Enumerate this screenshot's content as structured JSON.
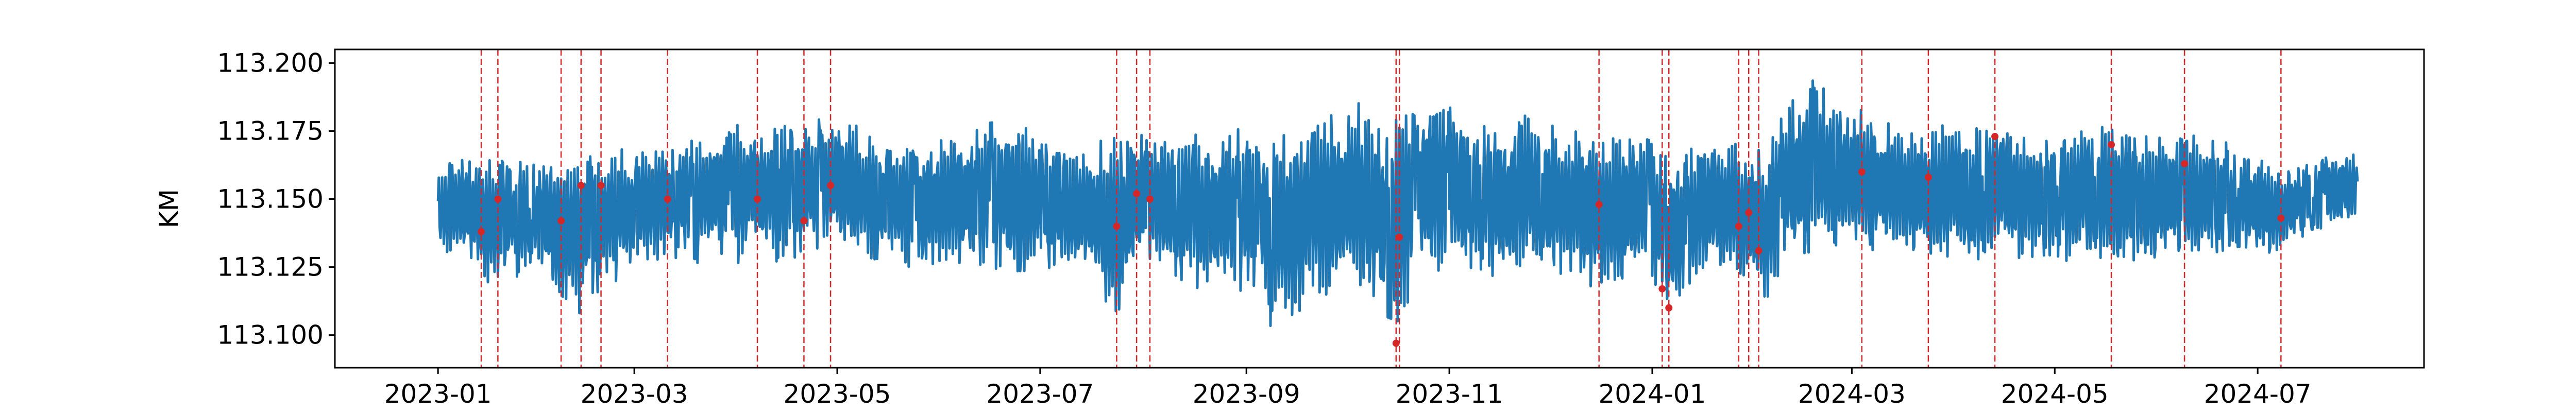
{
  "chart_data": {
    "type": "line",
    "title": "",
    "xlabel": "",
    "ylabel": "KM",
    "xlim": [
      "2022-12-01",
      "2024-08-20"
    ],
    "ylim": [
      113.088,
      113.205
    ],
    "x_ticks": [
      {
        "date": "2023-01-01",
        "label": "2023-01"
      },
      {
        "date": "2023-03-01",
        "label": "2023-03"
      },
      {
        "date": "2023-05-01",
        "label": "2023-05"
      },
      {
        "date": "2023-07-01",
        "label": "2023-07"
      },
      {
        "date": "2023-09-01",
        "label": "2023-09"
      },
      {
        "date": "2023-11-01",
        "label": "2023-11"
      },
      {
        "date": "2024-01-01",
        "label": "2024-01"
      },
      {
        "date": "2024-03-01",
        "label": "2024-03"
      },
      {
        "date": "2024-05-01",
        "label": "2024-05"
      },
      {
        "date": "2024-07-01",
        "label": "2024-07"
      }
    ],
    "y_ticks": [
      {
        "value": 113.1,
        "label": "113.100"
      },
      {
        "value": 113.125,
        "label": "113.125"
      },
      {
        "value": 113.15,
        "label": "113.150"
      },
      {
        "value": 113.175,
        "label": "113.175"
      },
      {
        "value": 113.2,
        "label": "113.200"
      }
    ],
    "grid": false,
    "series": [
      {
        "color": "#1f77b4",
        "x": [
          "2023-01-01",
          "2023-01-08",
          "2023-01-15",
          "2023-01-22",
          "2023-01-29",
          "2023-02-05",
          "2023-02-12",
          "2023-02-19",
          "2023-02-26",
          "2023-03-05",
          "2023-03-12",
          "2023-03-19",
          "2023-03-26",
          "2023-04-02",
          "2023-04-09",
          "2023-04-16",
          "2023-04-23",
          "2023-04-30",
          "2023-05-07",
          "2023-05-14",
          "2023-05-21",
          "2023-05-28",
          "2023-06-04",
          "2023-06-11",
          "2023-06-18",
          "2023-06-25",
          "2023-07-02",
          "2023-07-09",
          "2023-07-16",
          "2023-07-23",
          "2023-07-30",
          "2023-08-06",
          "2023-08-13",
          "2023-08-20",
          "2023-08-27",
          "2023-09-03",
          "2023-09-10",
          "2023-09-17",
          "2023-09-24",
          "2023-10-01",
          "2023-10-08",
          "2023-10-15",
          "2023-10-22",
          "2023-10-29",
          "2023-11-05",
          "2023-11-12",
          "2023-11-19",
          "2023-11-26",
          "2023-12-03",
          "2023-12-10",
          "2023-12-17",
          "2023-12-24",
          "2023-12-31",
          "2024-01-07",
          "2024-01-14",
          "2024-01-21",
          "2024-01-28",
          "2024-02-04",
          "2024-02-11",
          "2024-02-18",
          "2024-02-25",
          "2024-03-03",
          "2024-03-10",
          "2024-03-17",
          "2024-03-24",
          "2024-03-31",
          "2024-04-07",
          "2024-04-14",
          "2024-04-21",
          "2024-04-28",
          "2024-05-05",
          "2024-05-12",
          "2024-05-19",
          "2024-05-26",
          "2024-06-02",
          "2024-06-09",
          "2024-06-16",
          "2024-06-23",
          "2024-06-30",
          "2024-07-07",
          "2024-07-14",
          "2024-07-21",
          "2024-07-28"
        ],
        "high": [
          113.16,
          113.168,
          113.163,
          113.165,
          113.162,
          113.164,
          113.168,
          113.167,
          113.166,
          113.17,
          113.168,
          113.172,
          113.174,
          113.178,
          113.176,
          113.18,
          113.175,
          113.184,
          113.176,
          113.172,
          113.17,
          113.168,
          113.172,
          113.178,
          113.18,
          113.176,
          113.174,
          113.17,
          113.168,
          113.17,
          113.176,
          113.172,
          113.174,
          113.172,
          113.178,
          113.172,
          113.168,
          113.175,
          113.18,
          113.185,
          113.182,
          113.178,
          113.183,
          113.186,
          113.182,
          113.178,
          113.176,
          113.182,
          113.178,
          113.175,
          113.172,
          113.176,
          113.172,
          113.165,
          113.168,
          113.172,
          113.17,
          113.168,
          113.186,
          113.197,
          113.19,
          113.185,
          113.18,
          113.176,
          113.176,
          113.18,
          113.176,
          113.182,
          113.176,
          113.174,
          113.176,
          113.18,
          113.176,
          113.172,
          113.175,
          113.173,
          113.175,
          113.17,
          113.167,
          113.16,
          113.162,
          113.165,
          113.167
        ],
        "low": [
          113.128,
          113.132,
          113.115,
          113.118,
          113.124,
          113.113,
          113.102,
          113.118,
          113.12,
          113.124,
          113.128,
          113.125,
          113.13,
          113.126,
          113.128,
          113.125,
          113.13,
          113.128,
          113.126,
          113.128,
          113.122,
          113.12,
          113.126,
          113.118,
          113.122,
          113.12,
          113.124,
          113.118,
          113.12,
          113.094,
          113.12,
          113.125,
          113.118,
          113.11,
          113.112,
          113.115,
          113.098,
          113.104,
          113.112,
          113.11,
          113.114,
          113.096,
          113.118,
          113.12,
          113.118,
          113.122,
          113.118,
          113.124,
          113.12,
          113.117,
          113.116,
          113.12,
          113.118,
          113.105,
          113.118,
          113.122,
          113.12,
          113.112,
          113.128,
          113.13,
          113.133,
          113.13,
          113.128,
          113.13,
          113.126,
          113.128,
          113.125,
          113.13,
          113.127,
          113.128,
          113.126,
          113.128,
          113.125,
          113.128,
          113.127,
          113.13,
          113.126,
          113.13,
          113.128,
          113.128,
          113.136,
          113.138,
          113.14
        ],
        "mid": [
          113.145,
          113.148,
          113.142,
          113.143,
          113.144,
          113.14,
          113.138,
          113.144,
          113.146,
          113.148,
          113.15,
          113.15,
          113.153,
          113.153,
          113.153,
          113.154,
          113.154,
          113.157,
          113.152,
          113.15,
          113.148,
          113.146,
          113.15,
          113.15,
          113.152,
          113.149,
          113.15,
          113.145,
          113.146,
          113.138,
          113.15,
          113.15,
          113.148,
          113.143,
          113.147,
          113.145,
          113.138,
          113.142,
          113.148,
          113.15,
          113.15,
          113.14,
          113.152,
          113.155,
          113.152,
          113.15,
          113.148,
          113.154,
          113.15,
          113.147,
          113.145,
          113.149,
          113.146,
          113.137,
          113.144,
          113.148,
          113.146,
          113.14,
          113.157,
          113.162,
          113.16,
          113.158,
          113.154,
          113.153,
          113.151,
          113.154,
          113.151,
          113.156,
          113.152,
          113.151,
          113.152,
          113.154,
          113.151,
          113.15,
          113.151,
          113.151,
          113.151,
          113.15,
          113.148,
          113.146,
          113.149,
          113.152,
          113.154
        ]
      }
    ],
    "anomaly_markers": {
      "color": "#d62728",
      "dates": [
        "2023-01-14",
        "2023-01-19",
        "2023-02-07",
        "2023-02-13",
        "2023-02-19",
        "2023-03-11",
        "2023-04-07",
        "2023-04-21",
        "2023-04-29",
        "2023-07-24",
        "2023-07-30",
        "2023-08-03",
        "2023-10-16",
        "2023-10-17",
        "2023-12-16",
        "2024-01-04",
        "2024-01-06",
        "2024-01-27",
        "2024-01-30",
        "2024-02-02",
        "2024-03-04",
        "2024-03-24",
        "2024-04-13",
        "2024-05-18",
        "2024-06-09",
        "2024-07-08"
      ],
      "values": [
        113.138,
        113.15,
        113.142,
        113.155,
        113.155,
        113.15,
        113.15,
        113.142,
        113.155,
        113.14,
        113.152,
        113.15,
        113.097,
        113.136,
        113.148,
        113.117,
        113.11,
        113.14,
        113.145,
        113.131,
        113.16,
        113.158,
        113.173,
        113.17,
        113.163,
        113.143
      ]
    }
  }
}
